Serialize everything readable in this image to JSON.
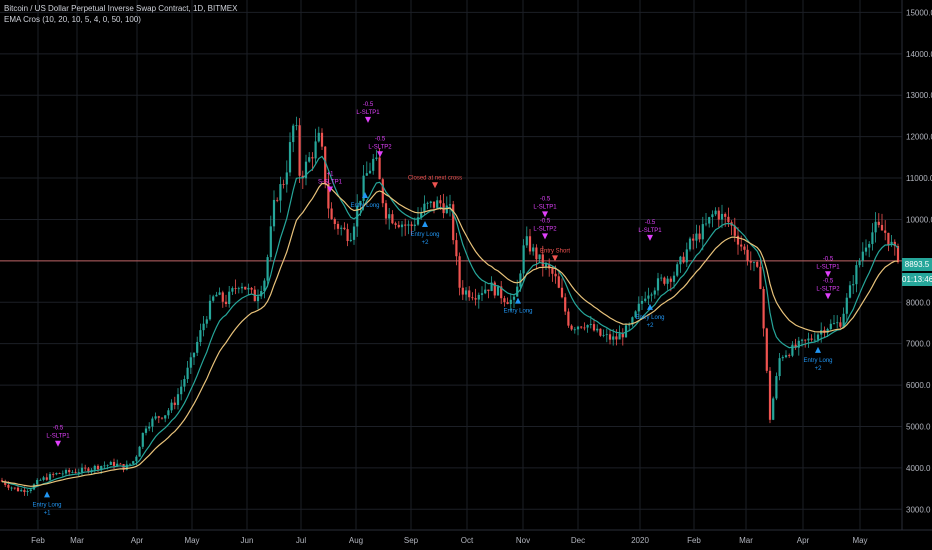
{
  "legend": {
    "symbol": "Bitcoin / US Dollar Perpetual Inverse Swap Contract, 1D, BITMEX",
    "indicator": "EMA Cros (10, 20, 10, 5, 4, 0, 50, 100)"
  },
  "price_tag": {
    "last": "8893.5",
    "countdown": "01:13:46",
    "last_color": "#26a69a",
    "count_color": "#26a69a"
  },
  "colors": {
    "up": "#26a69a",
    "down": "#ef5350",
    "ema_fast": "#26a69a",
    "ema_slow": "#e8c27a",
    "grid": "#1c1f26",
    "hline": "#e57373",
    "long": "#2196f3",
    "tp": "#e040fb"
  },
  "chart_data": {
    "type": "candlestick",
    "title": "Bitcoin / US Dollar Perpetual Inverse Swap Contract, 1D, BITMEX",
    "ylim": [
      2500,
      15300
    ],
    "y_ticks": [
      "15000.0",
      "14000.0",
      "13000.0",
      "12000.0",
      "11000.0",
      "10000.0",
      "9000.0",
      "8000.0",
      "7000.0",
      "6000.0",
      "5000.0",
      "4000.0",
      "3000.0"
    ],
    "x_ticks": [
      "Feb",
      "Mar",
      "Apr",
      "May",
      "Jun",
      "Jul",
      "Aug",
      "Sep",
      "Oct",
      "Nov",
      "Dec",
      "2020",
      "Feb",
      "Mar",
      "Apr",
      "May"
    ],
    "horizontal_line": 9000,
    "price_anchors": [
      [
        0,
        3700
      ],
      [
        10,
        3550
      ],
      [
        20,
        3450
      ],
      [
        30,
        3500
      ],
      [
        40,
        3700
      ],
      [
        55,
        3850
      ],
      [
        70,
        3900
      ],
      [
        85,
        3950
      ],
      [
        100,
        4050
      ],
      [
        115,
        4100
      ],
      [
        125,
        4000
      ],
      [
        135,
        4200
      ],
      [
        145,
        5000
      ],
      [
        155,
        5200
      ],
      [
        165,
        5300
      ],
      [
        175,
        5600
      ],
      [
        190,
        6500
      ],
      [
        205,
        7600
      ],
      [
        215,
        8200
      ],
      [
        225,
        8000
      ],
      [
        240,
        8500
      ],
      [
        255,
        8100
      ],
      [
        265,
        8600
      ],
      [
        275,
        10500
      ],
      [
        285,
        11000
      ],
      [
        295,
        12500
      ],
      [
        300,
        11000
      ],
      [
        310,
        11500
      ],
      [
        320,
        12000
      ],
      [
        330,
        10000
      ],
      [
        340,
        9800
      ],
      [
        350,
        9600
      ],
      [
        365,
        11000
      ],
      [
        375,
        11500
      ],
      [
        385,
        10200
      ],
      [
        395,
        10000
      ],
      [
        410,
        9800
      ],
      [
        425,
        10300
      ],
      [
        440,
        10400
      ],
      [
        450,
        10200
      ],
      [
        460,
        8300
      ],
      [
        475,
        8200
      ],
      [
        490,
        8400
      ],
      [
        505,
        8100
      ],
      [
        515,
        8000
      ],
      [
        525,
        9500
      ],
      [
        540,
        9000
      ],
      [
        555,
        8600
      ],
      [
        570,
        7400
      ],
      [
        585,
        7500
      ],
      [
        600,
        7200
      ],
      [
        615,
        7100
      ],
      [
        630,
        7400
      ],
      [
        645,
        8200
      ],
      [
        660,
        8500
      ],
      [
        675,
        8700
      ],
      [
        690,
        9400
      ],
      [
        705,
        9800
      ],
      [
        715,
        10200
      ],
      [
        730,
        9900
      ],
      [
        745,
        9200
      ],
      [
        760,
        8600
      ],
      [
        770,
        5200
      ],
      [
        780,
        6700
      ],
      [
        795,
        6900
      ],
      [
        810,
        7100
      ],
      [
        825,
        7400
      ],
      [
        840,
        7500
      ],
      [
        855,
        8700
      ],
      [
        865,
        9400
      ],
      [
        875,
        9800
      ],
      [
        885,
        9700
      ],
      [
        895,
        9200
      ],
      [
        905,
        8893
      ]
    ],
    "series": [
      {
        "name": "EMA fast",
        "type": "line"
      },
      {
        "name": "EMA slow",
        "type": "line"
      }
    ],
    "annotations": [
      {
        "x": 47,
        "label": "Entry Long",
        "qty": "+1",
        "kind": "long"
      },
      {
        "x": 58,
        "label": "L-SLTP1",
        "qty": "-0.5",
        "kind": "tp"
      },
      {
        "x": 368,
        "label": "L-SLTP1",
        "qty": "-0.5",
        "kind": "tp"
      },
      {
        "x": 380,
        "label": "L-SLTP2",
        "qty": "-0.5",
        "kind": "tp"
      },
      {
        "x": 365,
        "label": "Entry Long",
        "qty": "",
        "kind": "long"
      },
      {
        "x": 330,
        "label": "S-SLTP1",
        "qty": "+1",
        "kind": "tp"
      },
      {
        "x": 425,
        "label": "Entry Long",
        "qty": "+2",
        "kind": "long"
      },
      {
        "x": 435,
        "label": "Closed at next cross",
        "qty": "",
        "kind": "close"
      },
      {
        "x": 545,
        "label": "L-SLTP1",
        "qty": "-0.5",
        "kind": "tp"
      },
      {
        "x": 545,
        "label": "L-SLTP2",
        "qty": "-0.5",
        "kind": "tp"
      },
      {
        "x": 518,
        "label": "Entry Long",
        "qty": "",
        "kind": "long"
      },
      {
        "x": 555,
        "label": "Entry Short",
        "qty": "",
        "kind": "close"
      },
      {
        "x": 650,
        "label": "L-SLTP1",
        "qty": "-0.5",
        "kind": "tp"
      },
      {
        "x": 650,
        "label": "Entry Long",
        "qty": "+2",
        "kind": "long"
      },
      {
        "x": 828,
        "label": "L-SLTP1",
        "qty": "-0.5",
        "kind": "tp"
      },
      {
        "x": 828,
        "label": "L-SLTP2",
        "qty": "-0.5",
        "kind": "tp"
      },
      {
        "x": 818,
        "label": "Entry Long",
        "qty": "+2",
        "kind": "long"
      }
    ]
  }
}
